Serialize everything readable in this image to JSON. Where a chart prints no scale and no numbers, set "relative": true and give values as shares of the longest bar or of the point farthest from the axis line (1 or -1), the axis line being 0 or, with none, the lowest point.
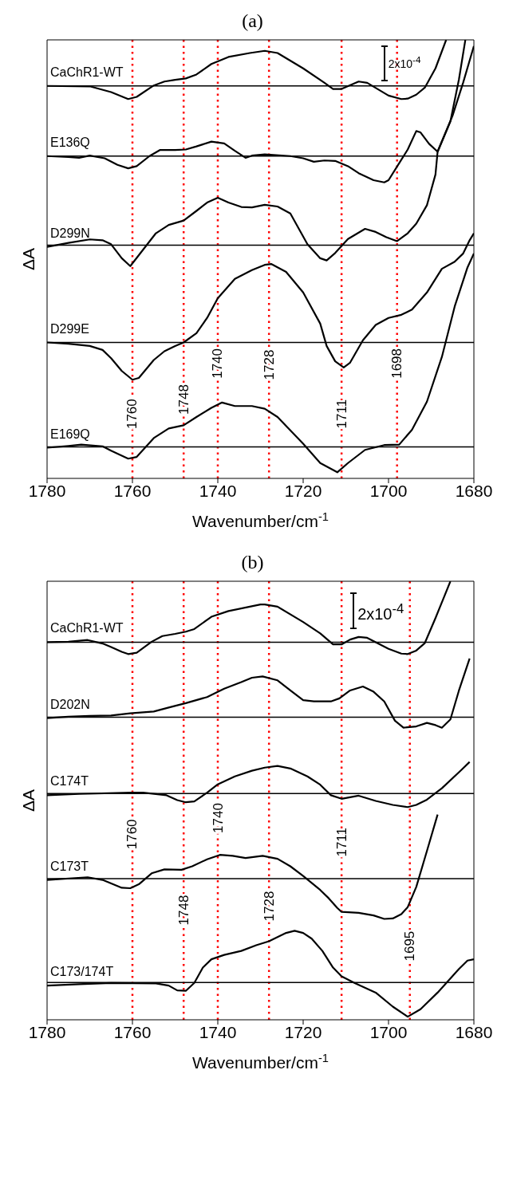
{
  "chart_data": [
    {
      "type": "line",
      "title": "(a)",
      "xlabel": "Wavenumber/cm$^{-1}$",
      "ylabel": "ΔA",
      "relative": true,
      "xlim": [
        1780,
        1680
      ],
      "xticks": [
        1780,
        1760,
        1740,
        1720,
        1700,
        1680
      ],
      "marker": "none",
      "annotations": [
        "2x10$^{-4}$"
      ],
      "ref_lines": [
        {
          "axis": "x",
          "value": 1760,
          "label": "1760",
          "color": "#ff0000",
          "line_style": "dotted"
        },
        {
          "axis": "x",
          "value": 1748,
          "label": "1748",
          "color": "#ff0000",
          "line_style": "dotted"
        },
        {
          "axis": "x",
          "value": 1740,
          "label": "1740",
          "color": "#ff0000",
          "line_style": "dotted"
        },
        {
          "axis": "x",
          "value": 1728,
          "label": "1728",
          "color": "#ff0000",
          "line_style": "dotted"
        },
        {
          "axis": "x",
          "value": 1711,
          "label": "1711",
          "color": "#ff0000",
          "line_style": "dotted"
        },
        {
          "axis": "x",
          "value": 1698,
          "label": "1698",
          "color": "#ff0000",
          "line_style": "dotted"
        },
        {
          "axis": "y",
          "value": 0.895,
          "color": "#000000"
        },
        {
          "axis": "y",
          "value": 0.735,
          "color": "#000000"
        },
        {
          "axis": "y",
          "value": 0.532,
          "color": "#000000"
        },
        {
          "axis": "y",
          "value": 0.31,
          "color": "#000000"
        },
        {
          "axis": "y",
          "value": 0.072,
          "color": "#000000"
        }
      ],
      "series": [
        {
          "name": "CaChR1-WT",
          "color": "#000000",
          "x": [
            1780,
            1770,
            1765,
            1761,
            1759,
            1755,
            1752.5,
            1750,
            1747.5,
            1745,
            1741.5,
            1737.5,
            1732.5,
            1729,
            1726,
            1720,
            1715,
            1713,
            1711,
            1707,
            1705,
            1700,
            1697,
            1695.5,
            1693.5,
            1691.5,
            1689,
            1686.5
          ],
          "values": [
            0.895,
            0.894,
            0.881,
            0.865,
            0.87,
            0.896,
            0.905,
            0.909,
            0.912,
            0.921,
            0.945,
            0.961,
            0.97,
            0.975,
            0.97,
            0.935,
            0.902,
            0.888,
            0.888,
            0.905,
            0.902,
            0.873,
            0.865,
            0.866,
            0.875,
            0.891,
            0.935,
            1
          ]
        },
        {
          "name": "E136Q",
          "color": "#000000",
          "x": [
            1780,
            1775,
            1772.5,
            1770,
            1766.5,
            1763.5,
            1761,
            1759,
            1756,
            1753.5,
            1750,
            1747.5,
            1745,
            1741.5,
            1738.5,
            1736,
            1733.5,
            1732,
            1729,
            1723,
            1720,
            1717.5,
            1715,
            1712.5,
            1709.5,
            1707,
            1703.5,
            1701,
            1700,
            1697.5,
            1695.5,
            1693.5,
            1692.5,
            1690.5,
            1688.5,
            1685.5,
            1683.5,
            1682
          ],
          "values": [
            0.735,
            0.733,
            0.731,
            0.736,
            0.73,
            0.715,
            0.707,
            0.712,
            0.735,
            0.749,
            0.749,
            0.75,
            0.757,
            0.768,
            0.764,
            0.747,
            0.731,
            0.736,
            0.739,
            0.735,
            0.73,
            0.722,
            0.725,
            0.724,
            0.712,
            0.696,
            0.68,
            0.675,
            0.68,
            0.719,
            0.75,
            0.792,
            0.789,
            0.763,
            0.745,
            0.814,
            0.91,
            1
          ]
        },
        {
          "name": "D299N",
          "color": "#000000",
          "x": [
            1780,
            1775,
            1770,
            1767,
            1765,
            1762.5,
            1760.5,
            1756.5,
            1754.5,
            1751.5,
            1748,
            1745,
            1742.5,
            1740,
            1737.5,
            1734.5,
            1732,
            1729,
            1726,
            1723,
            1719,
            1716,
            1714.5,
            1712.5,
            1709.5,
            1705.5,
            1703,
            1700.5,
            1698,
            1695.5,
            1693.5,
            1691,
            1689,
            1688.5,
            1685,
            1682.5,
            1680
          ],
          "values": [
            0.528,
            0.537,
            0.545,
            0.543,
            0.534,
            0.502,
            0.484,
            0.534,
            0.559,
            0.578,
            0.588,
            0.61,
            0.629,
            0.64,
            0.629,
            0.619,
            0.618,
            0.624,
            0.62,
            0.604,
            0.534,
            0.502,
            0.497,
            0.514,
            0.546,
            0.569,
            0.562,
            0.55,
            0.541,
            0.559,
            0.581,
            0.623,
            0.693,
            0.745,
            0.827,
            0.903,
            0.986
          ]
        },
        {
          "name": "D299E",
          "color": "#000000",
          "x": [
            1780,
            1775,
            1770,
            1767,
            1765,
            1762.5,
            1760,
            1758.5,
            1755,
            1752.5,
            1750,
            1748,
            1745,
            1742.5,
            1740,
            1736,
            1732,
            1729,
            1727.5,
            1724,
            1720,
            1716,
            1714.5,
            1712.5,
            1710.5,
            1709,
            1706,
            1703,
            1700,
            1697,
            1694.5,
            1691,
            1687.5,
            1684.5,
            1682.5,
            1681,
            1680
          ],
          "values": [
            0.31,
            0.307,
            0.302,
            0.293,
            0.274,
            0.245,
            0.225,
            0.229,
            0.27,
            0.29,
            0.302,
            0.31,
            0.331,
            0.366,
            0.411,
            0.455,
            0.475,
            0.487,
            0.489,
            0.471,
            0.424,
            0.353,
            0.302,
            0.267,
            0.253,
            0.264,
            0.315,
            0.35,
            0.366,
            0.373,
            0.385,
            0.424,
            0.478,
            0.494,
            0.513,
            0.543,
            0.559
          ]
        },
        {
          "name": "E169Q",
          "color": "#000000",
          "x": [
            1780,
            1775,
            1772,
            1767,
            1765,
            1761,
            1759,
            1755,
            1751.5,
            1748,
            1745,
            1741.5,
            1739,
            1736,
            1732,
            1729,
            1726,
            1720,
            1716,
            1712,
            1709.5,
            1705.5,
            1701,
            1697.5,
            1694.5,
            1691,
            1687.5,
            1684.5,
            1681.5,
            1680
          ],
          "values": [
            0.07,
            0.074,
            0.077,
            0.073,
            0.063,
            0.045,
            0.049,
            0.092,
            0.114,
            0.121,
            0.14,
            0.161,
            0.173,
            0.165,
            0.165,
            0.159,
            0.14,
            0.079,
            0.035,
            0.014,
            0.035,
            0.065,
            0.076,
            0.077,
            0.111,
            0.175,
            0.277,
            0.392,
            0.481,
            0.513
          ]
        }
      ]
    },
    {
      "type": "line",
      "title": "(b)",
      "xlabel": "Wavenumber/cm$^{-1}$",
      "ylabel": "ΔA",
      "relative": true,
      "xlim": [
        1780,
        1680
      ],
      "xticks": [
        1780,
        1760,
        1740,
        1720,
        1700,
        1680
      ],
      "marker": "none",
      "annotations": [
        "2x10$^{-4}$"
      ],
      "ref_lines": [
        {
          "axis": "x",
          "value": 1760,
          "label": "1760",
          "color": "#ff0000",
          "line_style": "dotted"
        },
        {
          "axis": "x",
          "value": 1748,
          "label": "1748",
          "color": "#ff0000",
          "line_style": "dotted"
        },
        {
          "axis": "x",
          "value": 1740,
          "label": "1740",
          "color": "#ff0000",
          "line_style": "dotted"
        },
        {
          "axis": "x",
          "value": 1728,
          "label": "1728",
          "color": "#ff0000",
          "line_style": "dotted"
        },
        {
          "axis": "x",
          "value": 1711,
          "label": "1711",
          "color": "#ff0000",
          "line_style": "dotted"
        },
        {
          "axis": "x",
          "value": 1695,
          "label": "1695",
          "color": "#ff0000",
          "line_style": "dotted"
        },
        {
          "axis": "y",
          "value": 0.861,
          "color": "#000000"
        },
        {
          "axis": "y",
          "value": 0.69,
          "color": "#000000"
        },
        {
          "axis": "y",
          "value": 0.516,
          "color": "#000000"
        },
        {
          "axis": "y",
          "value": 0.322,
          "color": "#000000"
        },
        {
          "axis": "y",
          "value": 0.085,
          "color": "#000000"
        }
      ],
      "series": [
        {
          "name": "CaChR1-WT",
          "color": "#000000",
          "x": [
            1780,
            1775,
            1770.5,
            1767,
            1765,
            1762.5,
            1761,
            1759,
            1755.5,
            1753,
            1750,
            1747.5,
            1745.5,
            1741.5,
            1737.5,
            1732.5,
            1730,
            1729,
            1726,
            1720,
            1716,
            1713,
            1711,
            1709,
            1707,
            1705,
            1700,
            1697,
            1695.5,
            1693.5,
            1691.5,
            1689,
            1687,
            1685.5
          ],
          "values": [
            0.861,
            0.862,
            0.866,
            0.858,
            0.85,
            0.839,
            0.834,
            0.837,
            0.862,
            0.875,
            0.88,
            0.885,
            0.891,
            0.919,
            0.932,
            0.942,
            0.947,
            0.947,
            0.942,
            0.907,
            0.881,
            0.856,
            0.856,
            0.867,
            0.873,
            0.871,
            0.846,
            0.835,
            0.834,
            0.842,
            0.859,
            0.916,
            0.964,
            1
          ]
        },
        {
          "name": "D202N",
          "color": "#000000",
          "x": [
            1780,
            1775,
            1770,
            1765,
            1760.5,
            1755,
            1751.5,
            1747.5,
            1742.5,
            1738.5,
            1734.5,
            1732,
            1729.5,
            1726,
            1723,
            1720,
            1717.5,
            1713.5,
            1711.5,
            1709,
            1706,
            1703.5,
            1701,
            1698.5,
            1696.5,
            1693.5,
            1691,
            1689,
            1687.5,
            1685.5,
            1683.5,
            1681
          ],
          "values": [
            0.688,
            0.691,
            0.693,
            0.694,
            0.699,
            0.703,
            0.712,
            0.722,
            0.736,
            0.755,
            0.77,
            0.78,
            0.783,
            0.774,
            0.751,
            0.729,
            0.726,
            0.726,
            0.733,
            0.751,
            0.76,
            0.748,
            0.726,
            0.682,
            0.666,
            0.669,
            0.677,
            0.672,
            0.666,
            0.685,
            0.751,
            0.824
          ]
        },
        {
          "name": "C174T",
          "color": "#000000",
          "x": [
            1780,
            1772.5,
            1760.5,
            1757.5,
            1752,
            1749.5,
            1747.5,
            1745.5,
            1742.5,
            1740,
            1736,
            1732,
            1729,
            1726,
            1723,
            1719,
            1716,
            1713.5,
            1711,
            1707,
            1703,
            1699,
            1695.5,
            1693.5,
            1691,
            1687.5,
            1683,
            1681
          ],
          "values": [
            0.512,
            0.515,
            0.518,
            0.518,
            0.512,
            0.501,
            0.496,
            0.498,
            0.518,
            0.537,
            0.555,
            0.568,
            0.575,
            0.579,
            0.573,
            0.555,
            0.536,
            0.512,
            0.504,
            0.511,
            0.499,
            0.49,
            0.485,
            0.49,
            0.502,
            0.528,
            0.569,
            0.588
          ]
        },
        {
          "name": "C173T",
          "color": "#000000",
          "x": [
            1780,
            1770.5,
            1767,
            1762.5,
            1760.5,
            1758.5,
            1755.5,
            1752.5,
            1748.5,
            1746,
            1742.5,
            1739.5,
            1736.5,
            1733.5,
            1729.5,
            1726,
            1723,
            1720,
            1716,
            1714,
            1712,
            1711,
            1707,
            1703.5,
            1701,
            1699,
            1697,
            1695.5,
            1693.5,
            1691,
            1688.5
          ],
          "values": [
            0.319,
            0.325,
            0.319,
            0.301,
            0.3,
            0.309,
            0.334,
            0.343,
            0.342,
            0.35,
            0.366,
            0.376,
            0.374,
            0.369,
            0.374,
            0.367,
            0.35,
            0.328,
            0.296,
            0.277,
            0.255,
            0.246,
            0.244,
            0.238,
            0.23,
            0.231,
            0.241,
            0.257,
            0.303,
            0.385,
            0.468
          ]
        },
        {
          "name": "C173/174T",
          "color": "#000000",
          "x": [
            1780,
            1772.5,
            1765,
            1754.5,
            1751.5,
            1749.5,
            1747.5,
            1745.5,
            1743.5,
            1741.5,
            1738.5,
            1734.5,
            1731,
            1728,
            1724,
            1722,
            1720,
            1718,
            1715.5,
            1713,
            1711,
            1708,
            1703,
            1699,
            1695.5,
            1692.5,
            1688.5,
            1683.5,
            1681.5,
            1680
          ],
          "values": [
            0.078,
            0.081,
            0.084,
            0.083,
            0.078,
            0.067,
            0.066,
            0.084,
            0.119,
            0.138,
            0.148,
            0.157,
            0.17,
            0.179,
            0.198,
            0.203,
            0.198,
            0.185,
            0.157,
            0.119,
            0.099,
            0.084,
            0.062,
            0.03,
            0.007,
            0.024,
            0.062,
            0.116,
            0.135,
            0.138
          ]
        }
      ]
    }
  ]
}
